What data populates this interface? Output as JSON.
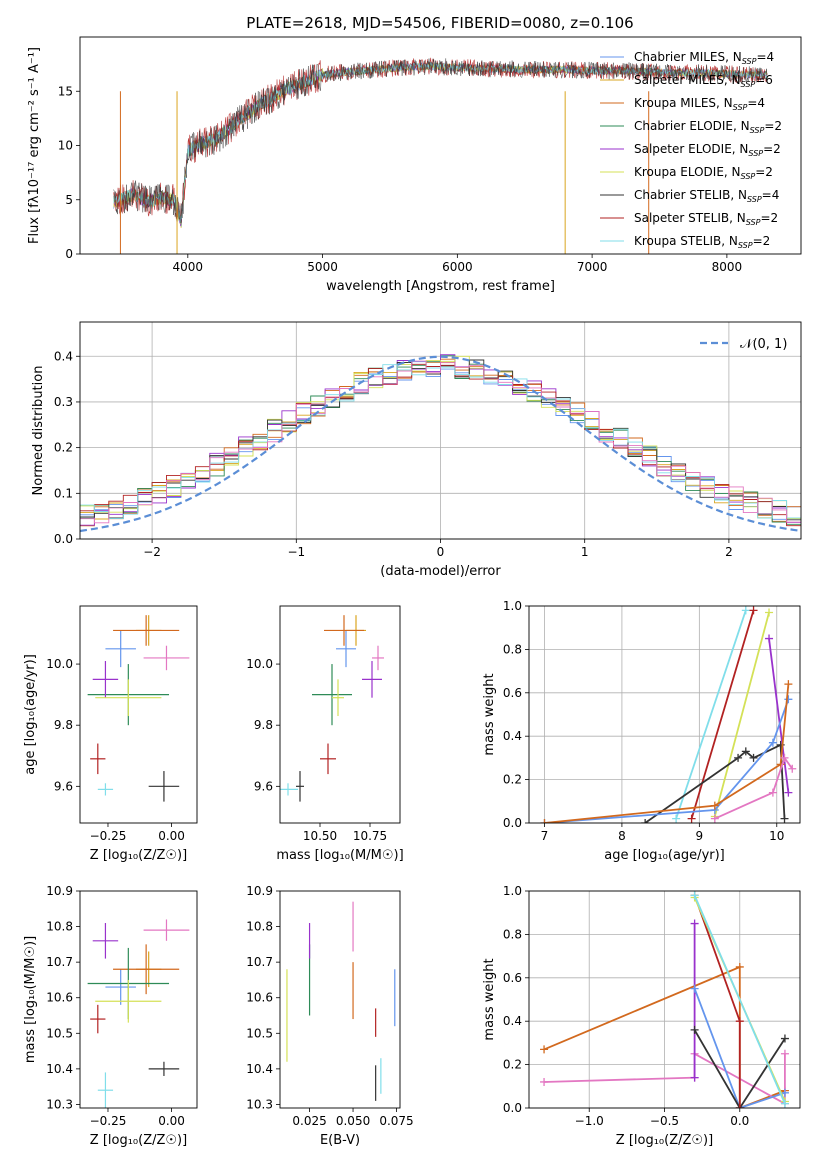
{
  "figure_title": "PLATE=2618, MJD=54506, FIBERID=0080, z=0.106",
  "chart_data": [
    {
      "id": "spectrum",
      "type": "line",
      "xlabel": "wavelength [Angstrom, rest frame]",
      "ylabel": "Flux [fλ10⁻¹⁷ erg cm⁻² s⁻¹ A⁻¹]",
      "xlim": [
        3200,
        8550
      ],
      "ylim": [
        0,
        20
      ],
      "xticks": [
        4000,
        5000,
        6000,
        7000,
        8000
      ],
      "yticks": [
        0,
        5,
        10,
        15
      ],
      "continuum": {
        "x": [
          3450,
          3600,
          3700,
          3800,
          3900,
          3950,
          4000,
          4100,
          4200,
          4300,
          4400,
          4500,
          4700,
          4850,
          5000,
          5200,
          5400,
          5600,
          5800,
          6000,
          6200,
          6500,
          6800,
          7000,
          7200,
          7400,
          7600,
          7800,
          8000,
          8200,
          8300
        ],
        "y": [
          4.8,
          5.5,
          4.8,
          5.2,
          5.0,
          3.0,
          9.5,
          10.2,
          10.5,
          11.5,
          12.5,
          13.5,
          15.0,
          15.8,
          16.5,
          16.8,
          17.0,
          17.2,
          17.3,
          17.2,
          17.1,
          17.0,
          17.0,
          16.9,
          16.9,
          16.8,
          16.7,
          16.7,
          16.6,
          16.5,
          16.5
        ]
      },
      "series": [
        {
          "name": "Chabrier MILES, N_SSP=4",
          "color": "#6495ed"
        },
        {
          "name": "Salpeter MILES, N_SSP=6",
          "color": "#daa520"
        },
        {
          "name": "Kroupa MILES, N_SSP=4",
          "color": "#d2691e"
        },
        {
          "name": "Chabrier ELODIE, N_SSP=2",
          "color": "#2e8b57"
        },
        {
          "name": "Salpeter ELODIE, N_SSP=2",
          "color": "#9932cc"
        },
        {
          "name": "Kroupa ELODIE, N_SSP=2",
          "color": "#d4e157"
        },
        {
          "name": "Chabrier STELIB, N_SSP=4",
          "color": "#333333"
        },
        {
          "name": "Salpeter STELIB, N_SSP=2",
          "color": "#b22222"
        },
        {
          "name": "Kroupa STELIB, N_SSP=2",
          "color": "#80deea"
        }
      ],
      "legend": {
        "placement": "right",
        "entries": [
          {
            "pre": "Chabrier MILES, N",
            "sub": "SSP",
            "post": "=4"
          },
          {
            "pre": "Salpeter MILES, N",
            "sub": "SSP",
            "post": "=6"
          },
          {
            "pre": "Kroupa MILES, N",
            "sub": "SSP",
            "post": "=4"
          },
          {
            "pre": "Chabrier ELODIE, N",
            "sub": "SSP",
            "post": "=2"
          },
          {
            "pre": "Salpeter ELODIE, N",
            "sub": "SSP",
            "post": "=2"
          },
          {
            "pre": "Kroupa ELODIE, N",
            "sub": "SSP",
            "post": "=2"
          },
          {
            "pre": "Chabrier STELIB, N",
            "sub": "SSP",
            "post": "=4"
          },
          {
            "pre": "Salpeter STELIB, N",
            "sub": "SSP",
            "post": "=2"
          },
          {
            "pre": "Kroupa STELIB, N",
            "sub": "SSP",
            "post": "=2"
          }
        ]
      }
    },
    {
      "id": "residuals",
      "type": "line",
      "xlabel": "(data-model)/error",
      "ylabel": "Normed distribution",
      "xlim": [
        -2.5,
        2.5
      ],
      "ylim": [
        0,
        0.475
      ],
      "xticks": [
        -2,
        -1,
        0,
        1,
        2
      ],
      "yticks": [
        0.0,
        0.1,
        0.2,
        0.3,
        0.4
      ],
      "grid": true,
      "legend": {
        "placement": "top-right",
        "label": "𝒩(0, 1)",
        "color": "#5b8ed6"
      },
      "bins": {
        "start": -2.5,
        "width": 0.1,
        "count": 50
      }
    },
    {
      "id": "age-vs-Z",
      "type": "scatter",
      "xlabel": "Z [log₁₀(Z/Z☉)]",
      "ylabel": "age  [log₁₀(age/yr)]",
      "xlim": [
        -0.36,
        0.1
      ],
      "ylim": [
        9.48,
        10.19
      ],
      "xticks": [
        -0.25,
        0.0
      ],
      "yticks": [
        9.6,
        9.8,
        10.0
      ],
      "points": [
        {
          "color": "#6495ed",
          "x": -0.2,
          "xerr": 0.06,
          "y": 10.05,
          "yerr": 0.06
        },
        {
          "color": "#daa520",
          "x": -0.09,
          "xerr": 0.05,
          "y": 10.11,
          "yerr": 0.05
        },
        {
          "color": "#d2691e",
          "x": -0.1,
          "xerr": 0.13,
          "y": 10.11,
          "yerr": 0.05
        },
        {
          "color": "#2e8b57",
          "x": -0.17,
          "xerr": 0.16,
          "y": 9.9,
          "yerr": 0.1
        },
        {
          "color": "#9932cc",
          "x": -0.26,
          "xerr": 0.05,
          "y": 9.95,
          "yerr": 0.06
        },
        {
          "color": "#d4e157",
          "x": -0.17,
          "xerr": 0.13,
          "y": 9.89,
          "yerr": 0.06
        },
        {
          "color": "#333333",
          "x": -0.03,
          "xerr": 0.06,
          "y": 9.6,
          "yerr": 0.05
        },
        {
          "color": "#b22222",
          "x": -0.29,
          "xerr": 0.03,
          "y": 9.69,
          "yerr": 0.05
        },
        {
          "color": "#80deea",
          "x": -0.26,
          "xerr": 0.03,
          "y": 9.59,
          "yerr": 0.02
        },
        {
          "color": "#e377c2",
          "x": -0.02,
          "xerr": 0.09,
          "y": 10.02,
          "yerr": 0.04
        }
      ]
    },
    {
      "id": "age-vs-mass",
      "type": "scatter",
      "xlabel": "mass [log₁₀(M/M☉)]",
      "ylabel": "",
      "xlim": [
        10.3,
        10.9
      ],
      "ylim": [
        9.48,
        10.19
      ],
      "xticks": [
        10.5,
        10.75
      ],
      "yticks": [
        9.6,
        9.8,
        10.0
      ],
      "points": [
        {
          "color": "#6495ed",
          "x": 10.63,
          "xerr": 0.05,
          "y": 10.05,
          "yerr": 0.06
        },
        {
          "color": "#daa520",
          "x": 10.68,
          "xerr": 0.05,
          "y": 10.11,
          "yerr": 0.05
        },
        {
          "color": "#d2691e",
          "x": 10.62,
          "xerr": 0.1,
          "y": 10.11,
          "yerr": 0.05
        },
        {
          "color": "#2e8b57",
          "x": 10.56,
          "xerr": 0.1,
          "y": 9.9,
          "yerr": 0.1
        },
        {
          "color": "#9932cc",
          "x": 10.76,
          "xerr": 0.05,
          "y": 9.95,
          "yerr": 0.06
        },
        {
          "color": "#d4e157",
          "x": 10.59,
          "xerr": 0.03,
          "y": 9.89,
          "yerr": 0.06
        },
        {
          "color": "#333333",
          "x": 10.4,
          "xerr": 0.02,
          "y": 9.6,
          "yerr": 0.05
        },
        {
          "color": "#b22222",
          "x": 10.54,
          "xerr": 0.04,
          "y": 9.69,
          "yerr": 0.05
        },
        {
          "color": "#80deea",
          "x": 10.34,
          "xerr": 0.05,
          "y": 9.59,
          "yerr": 0.02
        },
        {
          "color": "#e377c2",
          "x": 10.79,
          "xerr": 0.03,
          "y": 10.02,
          "yerr": 0.04
        }
      ]
    },
    {
      "id": "weight-vs-age",
      "type": "line",
      "xlabel": "age  [log₁₀(age/yr)]",
      "ylabel": "mass weight",
      "xlim": [
        6.8,
        10.3
      ],
      "ylim": [
        0,
        1
      ],
      "xticks": [
        7,
        8,
        9,
        10
      ],
      "yticks": [
        0.0,
        0.2,
        0.4,
        0.6,
        0.8,
        1.0
      ],
      "grid": true,
      "series": [
        {
          "color": "#80deea",
          "x": [
            8.7,
            9.6
          ],
          "y": [
            0.02,
            0.98
          ]
        },
        {
          "color": "#b22222",
          "x": [
            8.9,
            9.7
          ],
          "y": [
            0.02,
            0.98
          ]
        },
        {
          "color": "#d4e157",
          "x": [
            9.2,
            9.9
          ],
          "y": [
            0.03,
            0.97
          ]
        },
        {
          "color": "#333333",
          "x": [
            8.3,
            9.5,
            9.6,
            9.7,
            10.05,
            10.1
          ],
          "y": [
            0.0,
            0.3,
            0.33,
            0.3,
            0.36,
            0.02
          ]
        },
        {
          "color": "#9932cc",
          "x": [
            9.9,
            10.15
          ],
          "y": [
            0.85,
            0.14
          ]
        },
        {
          "color": "#6495ed",
          "x": [
            7.0,
            9.2,
            9.95,
            10.15
          ],
          "y": [
            0.0,
            0.06,
            0.37,
            0.57
          ]
        },
        {
          "color": "#d2691e",
          "x": [
            7.0,
            9.2,
            10.05,
            10.15
          ],
          "y": [
            0.0,
            0.08,
            0.27,
            0.64
          ]
        },
        {
          "color": "#e377c2",
          "x": [
            9.2,
            9.95,
            10.1,
            10.2
          ],
          "y": [
            0.02,
            0.14,
            0.3,
            0.25
          ]
        }
      ]
    },
    {
      "id": "mass-vs-Z",
      "type": "scatter",
      "xlabel": "Z [log₁₀(Z/Z☉)]",
      "ylabel": "mass [log₁₀(M/M☉)]",
      "xlim": [
        -0.36,
        0.1
      ],
      "ylim": [
        10.29,
        10.9
      ],
      "xticks": [
        -0.25,
        0.0
      ],
      "yticks": [
        10.3,
        10.4,
        10.5,
        10.6,
        10.7,
        10.8,
        10.9
      ],
      "points": [
        {
          "color": "#6495ed",
          "x": -0.2,
          "xerr": 0.06,
          "y": 10.63,
          "yerr": 0.05
        },
        {
          "color": "#daa520",
          "x": -0.09,
          "xerr": 0.05,
          "y": 10.68,
          "yerr": 0.05
        },
        {
          "color": "#d2691e",
          "x": -0.1,
          "xerr": 0.13,
          "y": 10.68,
          "yerr": 0.07
        },
        {
          "color": "#2e8b57",
          "x": -0.17,
          "xerr": 0.16,
          "y": 10.64,
          "yerr": 0.1
        },
        {
          "color": "#9932cc",
          "x": -0.26,
          "xerr": 0.05,
          "y": 10.76,
          "yerr": 0.05
        },
        {
          "color": "#d4e157",
          "x": -0.17,
          "xerr": 0.13,
          "y": 10.59,
          "yerr": 0.06
        },
        {
          "color": "#333333",
          "x": -0.03,
          "xerr": 0.06,
          "y": 10.4,
          "yerr": 0.02
        },
        {
          "color": "#b22222",
          "x": -0.29,
          "xerr": 0.03,
          "y": 10.54,
          "yerr": 0.04
        },
        {
          "color": "#80deea",
          "x": -0.26,
          "xerr": 0.03,
          "y": 10.34,
          "yerr": 0.05
        },
        {
          "color": "#e377c2",
          "x": -0.02,
          "xerr": 0.09,
          "y": 10.79,
          "yerr": 0.03
        }
      ]
    },
    {
      "id": "mass-vs-ebv",
      "type": "scatter",
      "xlabel": "E(B-V)",
      "ylabel": "",
      "xlim": [
        0.008,
        0.077
      ],
      "ylim": [
        10.29,
        10.9
      ],
      "xticks": [
        0.025,
        0.05,
        0.075
      ],
      "yticks": [
        10.3,
        10.4,
        10.5,
        10.6,
        10.7,
        10.8,
        10.9
      ],
      "points": [
        {
          "color": "#6495ed",
          "x": 0.074,
          "xerr": 0,
          "y": 10.6,
          "yerr": 0.08
        },
        {
          "color": "#d2691e",
          "x": 0.05,
          "xerr": 0,
          "y": 10.62,
          "yerr": 0.08
        },
        {
          "color": "#2e8b57",
          "x": 0.025,
          "xerr": 0,
          "y": 10.65,
          "yerr": 0.1
        },
        {
          "color": "#9932cc",
          "x": 0.025,
          "xerr": 0,
          "y": 10.76,
          "yerr": 0.05
        },
        {
          "color": "#d4e157",
          "x": 0.012,
          "xerr": 0,
          "y": 10.55,
          "yerr": 0.13
        },
        {
          "color": "#333333",
          "x": 0.063,
          "xerr": 0,
          "y": 10.36,
          "yerr": 0.05
        },
        {
          "color": "#b22222",
          "x": 0.063,
          "xerr": 0,
          "y": 10.53,
          "yerr": 0.04
        },
        {
          "color": "#80deea",
          "x": 0.066,
          "xerr": 0,
          "y": 10.38,
          "yerr": 0.05
        },
        {
          "color": "#e377c2",
          "x": 0.05,
          "xerr": 0,
          "y": 10.8,
          "yerr": 0.07
        }
      ]
    },
    {
      "id": "weight-vs-Z",
      "type": "line",
      "xlabel": "Z [log₁₀(Z/Z☉)]",
      "ylabel": "mass weight",
      "xlim": [
        -1.4,
        0.4
      ],
      "ylim": [
        0,
        1
      ],
      "xticks": [
        -1.0,
        -0.5,
        0.0
      ],
      "yticks": [
        0.0,
        0.2,
        0.4,
        0.6,
        0.8,
        1.0
      ],
      "grid": true,
      "series": [
        {
          "color": "#d2691e",
          "x": [
            -1.3,
            0.0,
            0.0,
            0.3
          ],
          "y": [
            0.27,
            0.65,
            0.0,
            0.08
          ]
        },
        {
          "color": "#e377c2",
          "x": [
            -1.3,
            -0.3,
            -0.3,
            0.3,
            0.3
          ],
          "y": [
            0.12,
            0.14,
            0.25,
            0.02,
            0.25
          ]
        },
        {
          "color": "#9932cc",
          "x": [
            -0.3,
            -0.3
          ],
          "y": [
            0.85,
            0.14
          ]
        },
        {
          "color": "#6495ed",
          "x": [
            -0.3,
            0.0,
            0.3
          ],
          "y": [
            0.55,
            0.0,
            0.07
          ]
        },
        {
          "color": "#333333",
          "x": [
            -0.3,
            0.0,
            0.3
          ],
          "y": [
            0.36,
            0.0,
            0.32
          ]
        },
        {
          "color": "#b22222",
          "x": [
            -0.3,
            0.0,
            0.0
          ],
          "y": [
            0.98,
            0.4,
            0.0
          ]
        },
        {
          "color": "#d4e157",
          "x": [
            -0.3,
            0.3
          ],
          "y": [
            0.97,
            0.03
          ]
        },
        {
          "color": "#80deea",
          "x": [
            -0.3,
            0.3
          ],
          "y": [
            0.98,
            0.02
          ]
        }
      ]
    }
  ]
}
